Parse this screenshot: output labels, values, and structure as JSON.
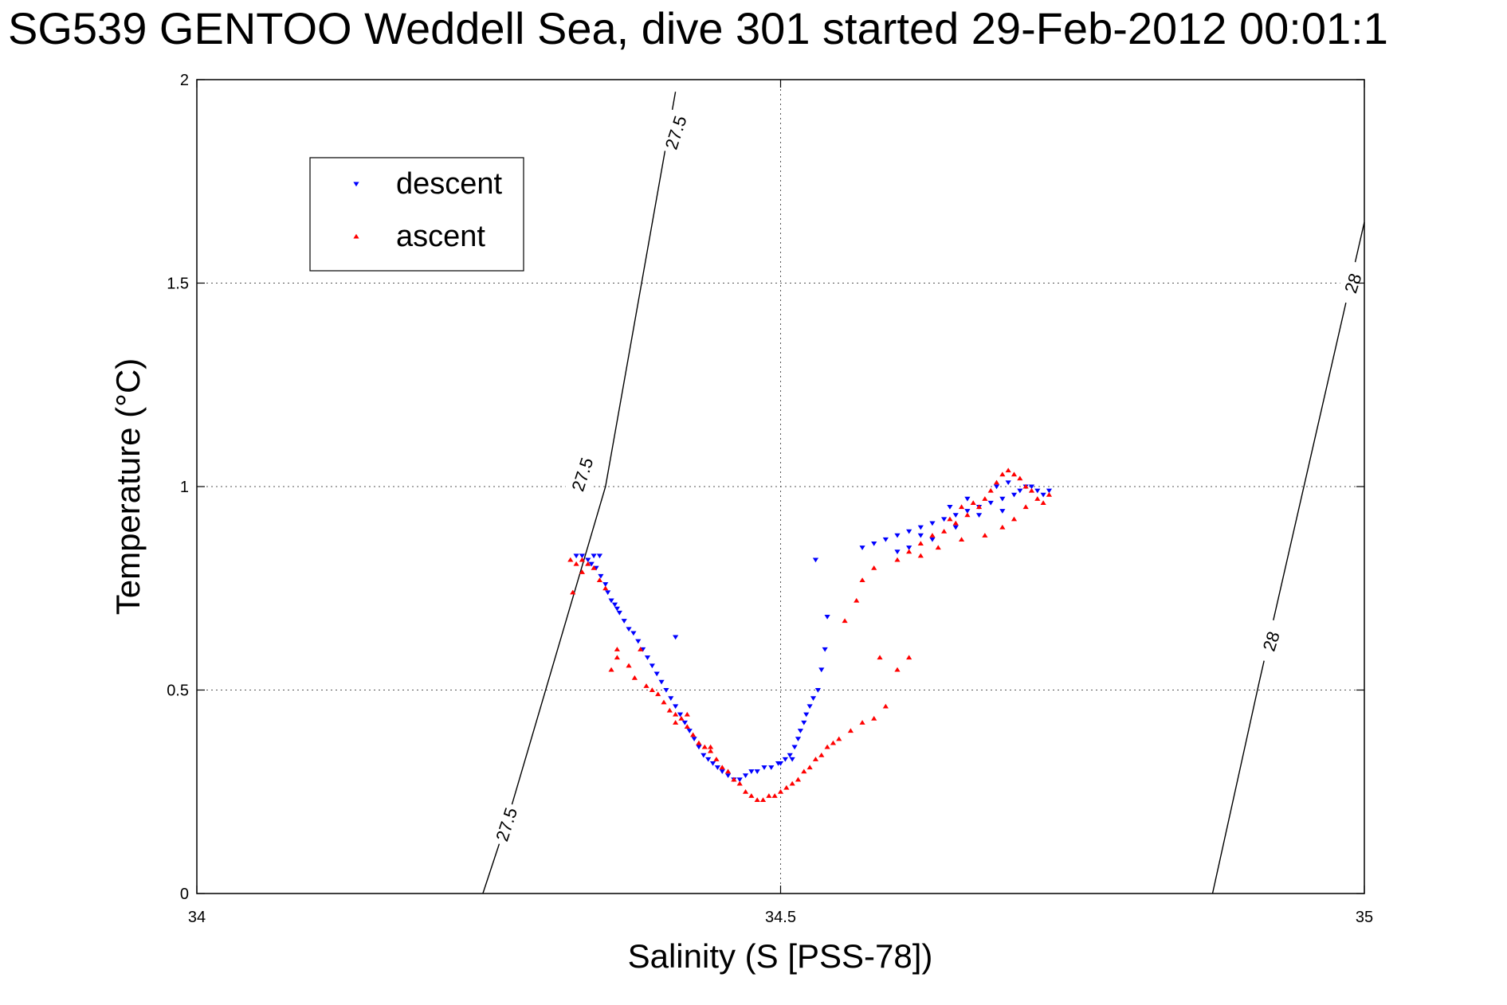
{
  "chart_data": {
    "type": "scatter",
    "title": "SG539 GENTOO Weddell Sea, dive 301 started 29-Feb-2012 00:01:1",
    "xlabel": "Salinity (S [PSS-78])",
    "ylabel": "Temperature (°C)",
    "xlim": [
      34,
      35
    ],
    "ylim": [
      0,
      2
    ],
    "xticks": [
      34,
      34.5,
      35
    ],
    "xtick_labels": [
      "34",
      "34.5",
      "35"
    ],
    "yticks": [
      0,
      0.5,
      1,
      1.5,
      2
    ],
    "ytick_labels": [
      "0",
      "0.5",
      "1",
      "1.5",
      "2"
    ],
    "grid": true,
    "legend_position": "top-left",
    "series": [
      {
        "name": "descent",
        "color": "#0000ff",
        "marker": "triangle-down",
        "points": [
          [
            34.325,
            0.83
          ],
          [
            34.33,
            0.83
          ],
          [
            34.335,
            0.82
          ],
          [
            34.34,
            0.83
          ],
          [
            34.345,
            0.83
          ],
          [
            34.338,
            0.81
          ],
          [
            34.342,
            0.8
          ],
          [
            34.346,
            0.78
          ],
          [
            34.35,
            0.76
          ],
          [
            34.352,
            0.74
          ],
          [
            34.355,
            0.72
          ],
          [
            34.358,
            0.71
          ],
          [
            34.36,
            0.7
          ],
          [
            34.362,
            0.69
          ],
          [
            34.366,
            0.67
          ],
          [
            34.37,
            0.65
          ],
          [
            34.374,
            0.64
          ],
          [
            34.378,
            0.62
          ],
          [
            34.382,
            0.6
          ],
          [
            34.386,
            0.58
          ],
          [
            34.39,
            0.56
          ],
          [
            34.394,
            0.54
          ],
          [
            34.398,
            0.52
          ],
          [
            34.402,
            0.5
          ],
          [
            34.406,
            0.48
          ],
          [
            34.41,
            0.46
          ],
          [
            34.414,
            0.44
          ],
          [
            34.418,
            0.42
          ],
          [
            34.422,
            0.4
          ],
          [
            34.426,
            0.38
          ],
          [
            34.43,
            0.36
          ],
          [
            34.434,
            0.34
          ],
          [
            34.438,
            0.33
          ],
          [
            34.442,
            0.32
          ],
          [
            34.446,
            0.31
          ],
          [
            34.45,
            0.3
          ],
          [
            34.455,
            0.29
          ],
          [
            34.46,
            0.28
          ],
          [
            34.465,
            0.28
          ],
          [
            34.47,
            0.29
          ],
          [
            34.475,
            0.3
          ],
          [
            34.48,
            0.3
          ],
          [
            34.486,
            0.31
          ],
          [
            34.492,
            0.31
          ],
          [
            34.498,
            0.32
          ],
          [
            34.504,
            0.33
          ],
          [
            34.508,
            0.34
          ],
          [
            34.512,
            0.36
          ],
          [
            34.515,
            0.38
          ],
          [
            34.517,
            0.4
          ],
          [
            34.52,
            0.42
          ],
          [
            34.522,
            0.44
          ],
          [
            34.525,
            0.46
          ],
          [
            34.528,
            0.48
          ],
          [
            34.532,
            0.5
          ],
          [
            34.535,
            0.55
          ],
          [
            34.538,
            0.6
          ],
          [
            34.54,
            0.68
          ],
          [
            34.53,
            0.82
          ],
          [
            34.41,
            0.63
          ],
          [
            34.5,
            0.32
          ],
          [
            34.51,
            0.33
          ],
          [
            34.57,
            0.85
          ],
          [
            34.58,
            0.86
          ],
          [
            34.59,
            0.87
          ],
          [
            34.6,
            0.88
          ],
          [
            34.61,
            0.89
          ],
          [
            34.62,
            0.9
          ],
          [
            34.63,
            0.91
          ],
          [
            34.64,
            0.92
          ],
          [
            34.65,
            0.93
          ],
          [
            34.66,
            0.94
          ],
          [
            34.67,
            0.95
          ],
          [
            34.68,
            0.96
          ],
          [
            34.69,
            0.97
          ],
          [
            34.7,
            0.98
          ],
          [
            34.705,
            0.99
          ],
          [
            34.71,
            1.0
          ],
          [
            34.715,
            1.0
          ],
          [
            34.72,
            0.99
          ],
          [
            34.725,
            0.98
          ],
          [
            34.73,
            0.99
          ],
          [
            34.685,
            1.0
          ],
          [
            34.695,
            1.01
          ],
          [
            34.66,
            0.97
          ],
          [
            34.645,
            0.95
          ],
          [
            34.62,
            0.88
          ],
          [
            34.6,
            0.84
          ],
          [
            34.61,
            0.85
          ],
          [
            34.63,
            0.87
          ],
          [
            34.65,
            0.9
          ],
          [
            34.67,
            0.93
          ],
          [
            34.69,
            0.94
          ]
        ]
      },
      {
        "name": "ascent",
        "color": "#ff0000",
        "marker": "triangle-up",
        "points": [
          [
            34.32,
            0.82
          ],
          [
            34.325,
            0.81
          ],
          [
            34.33,
            0.82
          ],
          [
            34.335,
            0.81
          ],
          [
            34.34,
            0.8
          ],
          [
            34.33,
            0.79
          ],
          [
            34.322,
            0.74
          ],
          [
            34.345,
            0.77
          ],
          [
            34.35,
            0.75
          ],
          [
            34.36,
            0.6
          ],
          [
            34.355,
            0.55
          ],
          [
            34.36,
            0.58
          ],
          [
            34.37,
            0.56
          ],
          [
            34.375,
            0.53
          ],
          [
            34.38,
            0.6
          ],
          [
            34.385,
            0.51
          ],
          [
            34.39,
            0.5
          ],
          [
            34.395,
            0.49
          ],
          [
            34.4,
            0.47
          ],
          [
            34.405,
            0.45
          ],
          [
            34.41,
            0.44
          ],
          [
            34.415,
            0.43
          ],
          [
            34.42,
            0.41
          ],
          [
            34.425,
            0.39
          ],
          [
            34.43,
            0.37
          ],
          [
            34.435,
            0.36
          ],
          [
            34.44,
            0.35
          ],
          [
            34.445,
            0.33
          ],
          [
            34.45,
            0.31
          ],
          [
            34.455,
            0.3
          ],
          [
            34.46,
            0.28
          ],
          [
            34.465,
            0.27
          ],
          [
            34.47,
            0.25
          ],
          [
            34.475,
            0.24
          ],
          [
            34.48,
            0.23
          ],
          [
            34.485,
            0.23
          ],
          [
            34.49,
            0.24
          ],
          [
            34.495,
            0.24
          ],
          [
            34.5,
            0.25
          ],
          [
            34.505,
            0.26
          ],
          [
            34.51,
            0.27
          ],
          [
            34.515,
            0.28
          ],
          [
            34.52,
            0.3
          ],
          [
            34.525,
            0.31
          ],
          [
            34.53,
            0.33
          ],
          [
            34.535,
            0.34
          ],
          [
            34.54,
            0.36
          ],
          [
            34.545,
            0.37
          ],
          [
            34.55,
            0.38
          ],
          [
            34.56,
            0.4
          ],
          [
            34.57,
            0.42
          ],
          [
            34.58,
            0.43
          ],
          [
            34.59,
            0.46
          ],
          [
            34.6,
            0.55
          ],
          [
            34.61,
            0.58
          ],
          [
            34.585,
            0.58
          ],
          [
            34.555,
            0.67
          ],
          [
            34.565,
            0.72
          ],
          [
            34.41,
            0.42
          ],
          [
            34.42,
            0.44
          ],
          [
            34.44,
            0.36
          ],
          [
            34.58,
            0.8
          ],
          [
            34.6,
            0.82
          ],
          [
            34.61,
            0.84
          ],
          [
            34.62,
            0.86
          ],
          [
            34.63,
            0.88
          ],
          [
            34.64,
            0.89
          ],
          [
            34.65,
            0.91
          ],
          [
            34.66,
            0.93
          ],
          [
            34.67,
            0.95
          ],
          [
            34.675,
            0.97
          ],
          [
            34.68,
            0.99
          ],
          [
            34.685,
            1.01
          ],
          [
            34.69,
            1.03
          ],
          [
            34.695,
            1.04
          ],
          [
            34.7,
            1.03
          ],
          [
            34.705,
            1.02
          ],
          [
            34.71,
            1.0
          ],
          [
            34.715,
            0.99
          ],
          [
            34.72,
            0.97
          ],
          [
            34.725,
            0.96
          ],
          [
            34.73,
            0.98
          ],
          [
            34.665,
            0.96
          ],
          [
            34.655,
            0.95
          ],
          [
            34.645,
            0.92
          ],
          [
            34.62,
            0.83
          ],
          [
            34.635,
            0.85
          ],
          [
            34.655,
            0.87
          ],
          [
            34.675,
            0.88
          ],
          [
            34.69,
            0.9
          ],
          [
            34.7,
            0.92
          ],
          [
            34.71,
            0.95
          ],
          [
            34.57,
            0.77
          ]
        ]
      }
    ],
    "annotations": [
      {
        "text": "27.5",
        "x": 34.41,
        "y": 1.87
      },
      {
        "text": "27.5",
        "x": 34.33,
        "y": 1.03
      },
      {
        "text": "27.5",
        "x": 34.265,
        "y": 0.17
      },
      {
        "text": "28",
        "x": 34.99,
        "y": 1.5
      },
      {
        "text": "28",
        "x": 34.92,
        "y": 0.62
      }
    ],
    "contours": [
      {
        "level": "27.5",
        "points": [
          [
            34.245,
            0
          ],
          [
            34.268,
            0.2
          ],
          [
            34.35,
            1.0
          ],
          [
            34.41,
            1.97
          ]
        ]
      },
      {
        "level": "28",
        "points": [
          [
            34.87,
            0
          ],
          [
            34.91,
            0.52
          ],
          [
            35.0,
            1.65
          ]
        ]
      }
    ]
  }
}
